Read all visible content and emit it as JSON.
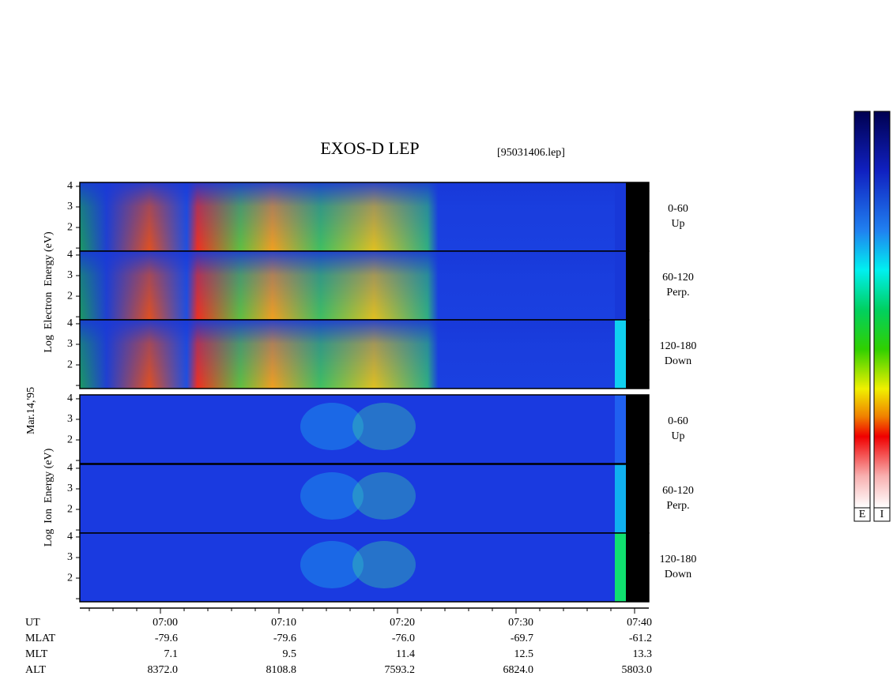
{
  "chart_data": {
    "type": "spectrogram",
    "title": "EXOS-D LEP",
    "subtitle": "[95031406.lep]",
    "date": "Mar.14,'95",
    "ylim": [
      0.85,
      4.19
    ],
    "yticks": [
      2,
      3,
      4
    ],
    "yminorticks": [
      1
    ],
    "xlim": [
      413.2,
      461.2
    ],
    "xticks": [
      {
        "value": 420,
        "label": "07:00"
      },
      {
        "value": 430,
        "label": "07:10"
      },
      {
        "value": 440,
        "label": "07:20"
      },
      {
        "value": 450,
        "label": "07:30"
      },
      {
        "value": 460,
        "label": "07:40"
      }
    ],
    "xminorticks": [
      414,
      416,
      418,
      422,
      424,
      426,
      428,
      432,
      434,
      436,
      438,
      442,
      444,
      446,
      448,
      452,
      454,
      456,
      458
    ],
    "groups": [
      {
        "ylabel": "Log  Electron  Energy (eV)",
        "panels": [
          {
            "label": "0-60",
            "sublabel": "Up"
          },
          {
            "label": "60-120",
            "sublabel": "Perp."
          },
          {
            "label": "120-180",
            "sublabel": "Down"
          }
        ]
      },
      {
        "ylabel": "Log  Ion  Energy (eV)",
        "panels": [
          {
            "label": "0-60",
            "sublabel": "Up"
          },
          {
            "label": "60-120",
            "sublabel": "Perp."
          },
          {
            "label": "120-180",
            "sublabel": "Down"
          }
        ]
      }
    ],
    "ephemeris_label": "UT",
    "ephemeris": [
      {
        "name": "MLAT",
        "values": [
          "-79.6",
          "-79.6",
          "-76.0",
          "-69.7",
          "-61.2"
        ]
      },
      {
        "name": "MLT",
        "values": [
          "7.1",
          "9.5",
          "11.4",
          "12.5",
          "13.3"
        ]
      },
      {
        "name": "ALT",
        "values": [
          "8372.0",
          "8108.8",
          "7593.2",
          "6824.0",
          "5803.0"
        ]
      }
    ],
    "colorbars": [
      "E",
      "I"
    ]
  }
}
